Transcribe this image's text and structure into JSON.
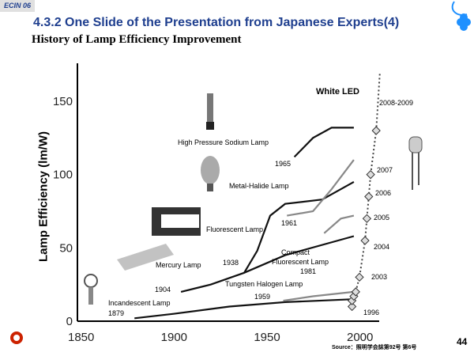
{
  "badge": "ECIN 06",
  "title": "4.3.2 One Slide of the Presentation from Japanese Experts(4)",
  "subtitle": "History of Lamp Efficiency Improvement",
  "page_number": "44",
  "source": "Source：照明学会誌第92号 第6号",
  "colors": {
    "title": "#1f3f8f",
    "logo": "#1e90ff",
    "left_logo": "#cc2200"
  },
  "chart_data": {
    "type": "line",
    "title": "",
    "xlabel": "",
    "ylabel": "Lamp Efficiency (lm/W)",
    "xlim": [
      1850,
      2010
    ],
    "ylim": [
      0,
      160
    ],
    "x_ticks": [
      "1850",
      "1900",
      "1950",
      "2000"
    ],
    "y_ticks": [
      "0",
      "50",
      "100",
      "150"
    ],
    "grid": false,
    "series": [
      {
        "name": "Incandescent Lamp",
        "points": [
          [
            1879,
            2
          ],
          [
            1900,
            5
          ],
          [
            1930,
            10
          ],
          [
            1960,
            13
          ],
          [
            1997,
            15
          ]
        ]
      },
      {
        "name": "Tungsten Halogen Lamp",
        "points": [
          [
            1959,
            14
          ],
          [
            1975,
            17
          ],
          [
            1997,
            20
          ]
        ]
      },
      {
        "name": "Mercury Lamp",
        "points": [
          [
            1904,
            20
          ],
          [
            1920,
            25
          ],
          [
            1938,
            33
          ],
          [
            1960,
            45
          ],
          [
            1997,
            58
          ]
        ]
      },
      {
        "name": "Fluorescent Lamp",
        "points": [
          [
            1938,
            33
          ],
          [
            1945,
            48
          ],
          [
            1952,
            72
          ],
          [
            1960,
            80
          ],
          [
            1980,
            83
          ],
          [
            1997,
            95
          ]
        ]
      },
      {
        "name": "Metal-Halide Lamp",
        "points": [
          [
            1961,
            72
          ],
          [
            1975,
            75
          ],
          [
            1985,
            90
          ],
          [
            1997,
            110
          ]
        ]
      },
      {
        "name": "Compact Fluorescent Lamp",
        "points": [
          [
            1981,
            60
          ],
          [
            1990,
            70
          ],
          [
            1997,
            72
          ]
        ]
      },
      {
        "name": "High Pressure Sodium Lamp",
        "points": [
          [
            1965,
            112
          ],
          [
            1975,
            125
          ],
          [
            1985,
            132
          ],
          [
            1997,
            132
          ]
        ]
      },
      {
        "name": "White LED",
        "points": [
          [
            1996,
            10
          ],
          [
            1996,
            14
          ],
          [
            1997,
            17
          ],
          [
            1998,
            20
          ],
          [
            2000,
            30
          ],
          [
            2003,
            55
          ],
          [
            2004,
            70
          ],
          [
            2005,
            85
          ],
          [
            2006,
            100
          ],
          [
            2009,
            130
          ],
          [
            2011,
            170
          ]
        ]
      }
    ],
    "annotations": [
      "1879",
      "1904",
      "1938",
      "1959",
      "1961",
      "1965",
      "1981",
      "1996",
      "2003",
      "2004",
      "2005",
      "2006",
      "2007",
      "2008-2009"
    ],
    "labels": {
      "incandescent": "Incandescent Lamp",
      "mercury": "Mercury Lamp",
      "halogen": "Tungsten Halogen Lamp",
      "cfl": "Compact Fluorescent Lamp",
      "fluorescent": "Fluorescent Lamp",
      "metal_halide": "Metal-Halide Lamp",
      "sodium": "High Pressure Sodium Lamp",
      "led": "White LED"
    },
    "cfl_line1": "Compact",
    "cfl_line2": "Fluorescent Lamp"
  }
}
